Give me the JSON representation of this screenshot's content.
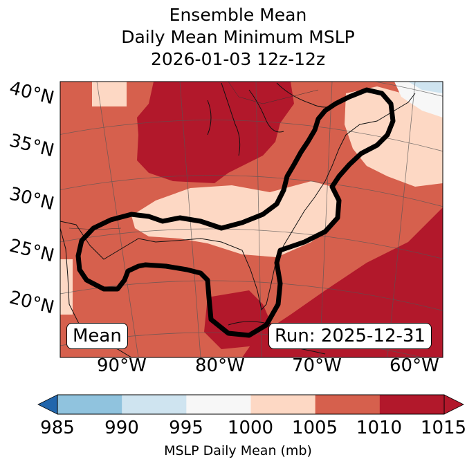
{
  "title": {
    "line1": "Ensemble Mean",
    "line2": "Daily Mean Minimum MSLP",
    "line3": "2026-01-03 12z-12z"
  },
  "badges": {
    "left": "Mean",
    "right": "Run: 2025-12-31"
  },
  "lat_labels": [
    "40°N",
    "35°N",
    "30°N",
    "25°N",
    "20°N"
  ],
  "lon_labels": [
    "90°W",
    "80°W",
    "70°W",
    "60°W"
  ],
  "colorbar": {
    "label": "MSLP Daily Mean (mb)",
    "ticks": [
      "985",
      "990",
      "995",
      "1000",
      "1005",
      "1010",
      "1015"
    ],
    "colors": [
      "#3a88c0",
      "#90c3de",
      "#cfe4f0",
      "#f7f7f7",
      "#fdd8c4",
      "#d6604d",
      "#b2182b"
    ],
    "under_color": "#2166ac",
    "over_color": "#b2182b"
  },
  "palette": {
    "c1000": "#f7f7f7",
    "c1005": "#fdd8c4",
    "c1010": "#d6604d",
    "c1015": "#b2182b",
    "c995": "#cfe4f0"
  }
}
